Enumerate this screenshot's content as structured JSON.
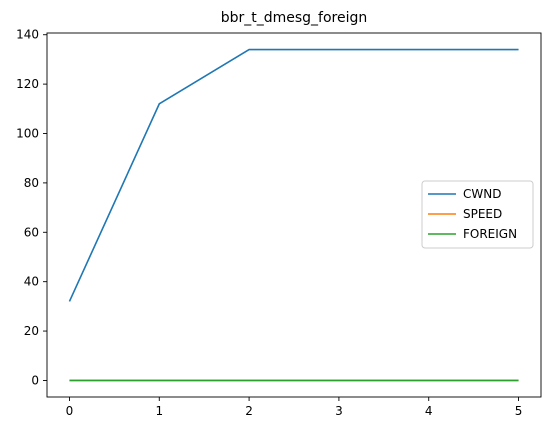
{
  "chart_data": {
    "type": "line",
    "title": "bbr_t_dmesg_foreign",
    "xlabel": "",
    "ylabel": "",
    "x": [
      0,
      1,
      2,
      3,
      4,
      5
    ],
    "xlim": [
      -0.25,
      5.25
    ],
    "ylim": [
      -6.7,
      140.7
    ],
    "xticks": [
      0,
      1,
      2,
      3,
      4,
      5
    ],
    "yticks": [
      0,
      20,
      40,
      60,
      80,
      100,
      120,
      140
    ],
    "grid": false,
    "legend_position": "center-right",
    "series": [
      {
        "name": "CWND",
        "color": "#1f77b4",
        "values": [
          32,
          112,
          134,
          134,
          134,
          134
        ]
      },
      {
        "name": "SPEED",
        "color": "#ff7f0e",
        "values": [
          0,
          0,
          0,
          0,
          0,
          0
        ]
      },
      {
        "name": "FOREIGN",
        "color": "#2ca02c",
        "values": [
          0,
          0,
          0,
          0,
          0,
          0
        ]
      }
    ]
  }
}
